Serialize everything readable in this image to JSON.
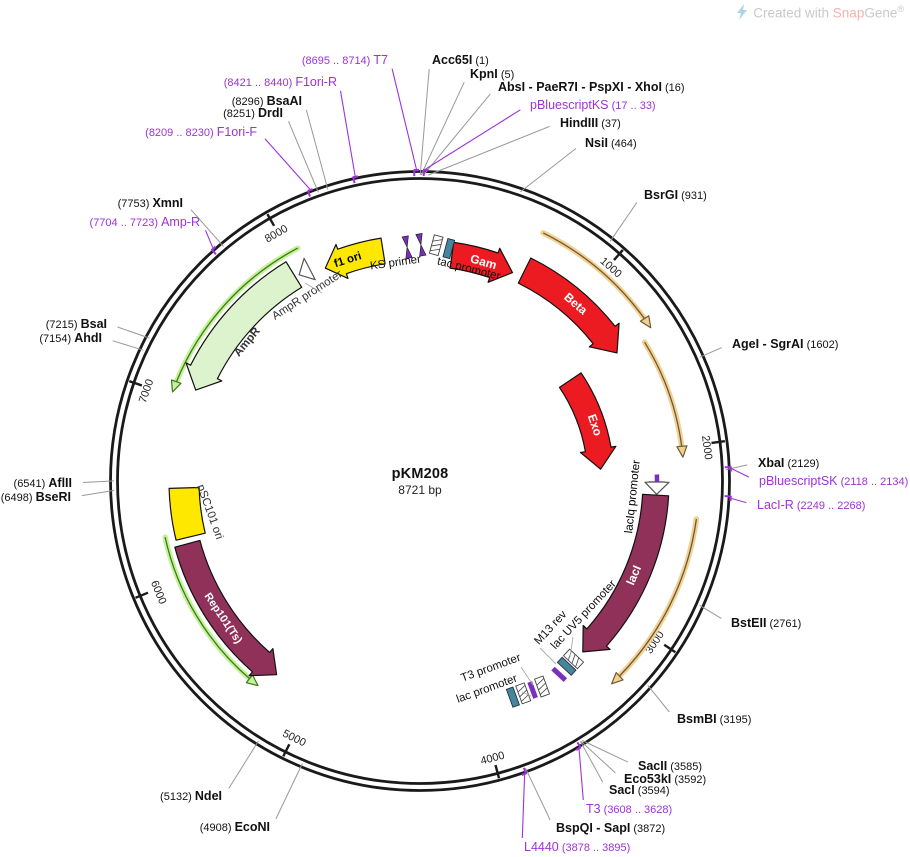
{
  "watermark": {
    "prefix": "Created with ",
    "brand_snap": "Snap",
    "brand_gene": "Gene",
    "registered": "®"
  },
  "plasmid": {
    "name": "pKM208",
    "size_label": "8721 bp",
    "length_bp": 8721
  },
  "axis_ticks": [
    1000,
    2000,
    3000,
    4000,
    5000,
    6000,
    7000,
    8000
  ],
  "colors": {
    "ring": "#1a1a1a",
    "leader_gray": "#999999",
    "purple": "#9D33D6",
    "red": "#EC1A21",
    "maroon": "#8F3158",
    "yellow": "#FFE800",
    "pale_green": "#DDF3CE",
    "white": "#FFFFFF",
    "orange_light": "#F3CF92",
    "orange_dark": "#6B5B33",
    "green_light": "#C6F09A",
    "green_dark": "#3A7A17",
    "glyph_purple": "#7B2FBE",
    "glyph_teal": "#44869B"
  },
  "features": [
    {
      "id": "f1_ori",
      "label": "f1 ori",
      "type": "arrow",
      "tail": 8500,
      "head": 8140,
      "dir": "ccw",
      "fill": "#FFE800",
      "text": "#000000"
    },
    {
      "id": "gam",
      "label": "Gam",
      "type": "arrow",
      "tail": 195,
      "head": 580,
      "dir": "cw",
      "fill": "#EC1A21",
      "text": "#FFFFFF"
    },
    {
      "id": "beta",
      "label": "Beta",
      "type": "arrow",
      "tail": 640,
      "head": 1380,
      "dir": "cw",
      "fill": "#EC1A21",
      "text": "#FFFFFF"
    },
    {
      "id": "exo",
      "label": "Exo",
      "type": "arrow",
      "tail": 1360,
      "head": 2090,
      "dir": "cw",
      "fill": "#EC1A21",
      "text": "#FFFFFF"
    },
    {
      "id": "laciq_prom",
      "label": "lacIq promoter",
      "type": "arrow",
      "tail": 2186,
      "head": 2258,
      "dir": "cw",
      "fill": "#FFFFFF",
      "text": "#000000"
    },
    {
      "id": "laci",
      "label": "lacI",
      "type": "arrow",
      "tail": 2263,
      "head": 3304,
      "dir": "cw",
      "fill": "#8F3158",
      "text": "#FFFFFF"
    },
    {
      "id": "rep101",
      "label": "Rep101(Ts)",
      "type": "arrow",
      "tail": 6175,
      "head": 5245,
      "dir": "ccw",
      "fill": "#8F3158",
      "text": "#FFFFFF"
    },
    {
      "id": "psc101",
      "label": "pSC101 ori",
      "type": "block",
      "tail": 6210,
      "head": 6500,
      "dir": "cw",
      "fill": "#FFE800",
      "text": "#333333"
    },
    {
      "id": "ampr",
      "label": "AmpR",
      "type": "arrow",
      "tail": 7960,
      "head": 7075,
      "dir": "ccw",
      "fill": "#DDF3CE",
      "text": "#333333"
    },
    {
      "id": "ampr_prom",
      "label": "AmpR promoter",
      "type": "arrow",
      "tail": 8055,
      "head": 7985,
      "dir": "ccw",
      "fill": "#FFFFFF",
      "text": "#333333"
    }
  ],
  "small_labels": [
    {
      "id": "ks_primer",
      "text": "KS primer"
    },
    {
      "id": "tac_prom",
      "text": "tac promoter"
    },
    {
      "id": "m13_rev",
      "text": "M13 rev"
    },
    {
      "id": "lacuv5",
      "text": "lac UV5 promoter"
    },
    {
      "id": "t3_prom",
      "text": "T3 promoter"
    },
    {
      "id": "lac_prom",
      "text": "lac promoter"
    }
  ],
  "restriction_sites": [
    {
      "id": "acc65i",
      "name": "Acc65I",
      "pos": "(1)",
      "bp": 1
    },
    {
      "id": "kpni",
      "name": "KpnI",
      "pos": "(5)",
      "bp": 5
    },
    {
      "id": "absi",
      "name": "AbsI - PaeR7I - PspXI - XhoI",
      "pos": "(16)",
      "bp": 16
    },
    {
      "id": "hindiii",
      "name": "HindIII",
      "pos": "(37)",
      "bp": 37
    },
    {
      "id": "nsii",
      "name": "NsiI",
      "pos": "(464)",
      "bp": 464
    },
    {
      "id": "bsrgi",
      "name": "BsrGI",
      "pos": "(931)",
      "bp": 931
    },
    {
      "id": "agei",
      "name": "AgeI - SgrAI",
      "pos": "(1602)",
      "bp": 1602
    },
    {
      "id": "xbai",
      "name": "XbaI",
      "pos": "(2129)",
      "bp": 2129
    },
    {
      "id": "bsteii",
      "name": "BstEII",
      "pos": "(2761)",
      "bp": 2761
    },
    {
      "id": "bsmbi",
      "name": "BsmBI",
      "pos": "(3195)",
      "bp": 3195
    },
    {
      "id": "sacii",
      "name": "SacII",
      "pos": "(3585)",
      "bp": 3585
    },
    {
      "id": "eco53ki",
      "name": "Eco53kI",
      "pos": "(3592)",
      "bp": 3592
    },
    {
      "id": "saci",
      "name": "SacI",
      "pos": "(3594)",
      "bp": 3594
    },
    {
      "id": "bspqi",
      "name": "BspQI - SapI",
      "pos": "(3872)",
      "bp": 3872
    },
    {
      "id": "econi",
      "name": "EcoNI",
      "pos": "(4908)",
      "bp": 4908
    },
    {
      "id": "ndei",
      "name": "NdeI",
      "pos": "(5132)",
      "bp": 5132
    },
    {
      "id": "bseri",
      "name": "BseRI",
      "pos": "(6498)",
      "bp": 6498
    },
    {
      "id": "aflii",
      "name": "AflII",
      "pos": "(6541)",
      "bp": 6541
    },
    {
      "id": "ahdi",
      "name": "AhdI",
      "pos": "(7154)",
      "bp": 7154
    },
    {
      "id": "bsai",
      "name": "BsaI",
      "pos": "(7215)",
      "bp": 7215
    },
    {
      "id": "xmni",
      "name": "XmnI",
      "pos": "(7753)",
      "bp": 7753
    },
    {
      "id": "drdi",
      "name": "DrdI",
      "pos": "(8251)",
      "bp": 8251
    },
    {
      "id": "bsaai",
      "name": "BsaAI",
      "pos": "(8296)",
      "bp": 8296
    }
  ],
  "primer_sites": [
    {
      "id": "pbks",
      "name": "pBluescriptKS",
      "pos": "(17 .. 33)",
      "bp": 25,
      "range": [
        17,
        33
      ]
    },
    {
      "id": "pbsk",
      "name": "pBluescriptSK",
      "pos": "(2118 .. 2134)",
      "bp": 2126,
      "range": [
        2118,
        2134
      ]
    },
    {
      "id": "lacir",
      "name": "LacI-R",
      "pos": "(2249 .. 2268)",
      "bp": 2258,
      "range": [
        2249,
        2268
      ]
    },
    {
      "id": "t3p",
      "name": "T3",
      "pos": "(3608 .. 3628)",
      "bp": 3618,
      "range": [
        3608,
        3628
      ]
    },
    {
      "id": "l4440",
      "name": "L4440",
      "pos": "(3878 .. 3895)",
      "bp": 3886,
      "range": [
        3878,
        3895
      ]
    },
    {
      "id": "ampr_r",
      "name": "Amp-R",
      "pos": "(7704 .. 7723)",
      "bp": 7713,
      "range": [
        7704,
        7723
      ]
    },
    {
      "id": "f1orif",
      "name": "F1ori-F",
      "pos": "(8209 .. 8230)",
      "bp": 8220,
      "range": [
        8209,
        8230
      ]
    },
    {
      "id": "f1orir",
      "name": "F1ori-R",
      "pos": "(8421 .. 8440)",
      "bp": 8430,
      "range": [
        8421,
        8440
      ]
    },
    {
      "id": "t7",
      "name": "T7",
      "pos": "(8695 .. 8714)",
      "bp": 8705,
      "range": [
        8695,
        8714
      ]
    }
  ],
  "orf_arrows": [
    {
      "id": "orf_beta",
      "tail": 640,
      "head": 1366,
      "dir": "cw",
      "color": "orange"
    },
    {
      "id": "orf_exo",
      "tail": 1412,
      "head": 2055,
      "dir": "cw",
      "color": "orange"
    },
    {
      "id": "orf_laci",
      "tail": 2370,
      "head": 3310,
      "dir": "cw",
      "color": "orange"
    },
    {
      "id": "orf_ampr",
      "tail": 8050,
      "head": 7020,
      "dir": "ccw",
      "color": "green"
    },
    {
      "id": "orf_rep",
      "tail": 6240,
      "head": 5290,
      "dir": "ccw",
      "color": "green"
    }
  ]
}
